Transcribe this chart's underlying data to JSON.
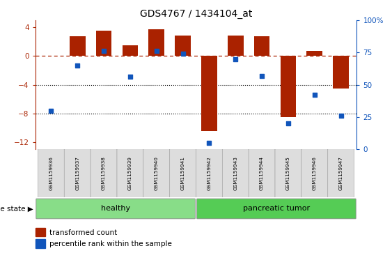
{
  "title": "GDS4767 / 1434104_at",
  "samples": [
    "GSM1159936",
    "GSM1159937",
    "GSM1159938",
    "GSM1159939",
    "GSM1159940",
    "GSM1159941",
    "GSM1159942",
    "GSM1159943",
    "GSM1159944",
    "GSM1159945",
    "GSM1159946",
    "GSM1159947"
  ],
  "bar_values": [
    0.0,
    2.8,
    3.5,
    1.5,
    3.7,
    2.9,
    -10.5,
    2.9,
    2.8,
    -8.5,
    0.7,
    -4.5
  ],
  "scatter_percentile": [
    30,
    65,
    76,
    56,
    76,
    74,
    5,
    70,
    57,
    20,
    42,
    26
  ],
  "bar_color": "#AA2200",
  "scatter_color": "#1155BB",
  "ylim_left": [
    -13,
    5
  ],
  "ylim_right": [
    0,
    100
  ],
  "yticks_left": [
    4,
    0,
    -4,
    -8,
    -12
  ],
  "yticks_right": [
    0,
    25,
    50,
    75,
    100
  ],
  "groups": [
    {
      "label": "healthy",
      "start": 0,
      "end": 6,
      "color": "#88DD88"
    },
    {
      "label": "pancreatic tumor",
      "start": 6,
      "end": 12,
      "color": "#55CC55"
    }
  ],
  "disease_label": "disease state",
  "legend_bar_label": "transformed count",
  "legend_scatter_label": "percentile rank within the sample"
}
